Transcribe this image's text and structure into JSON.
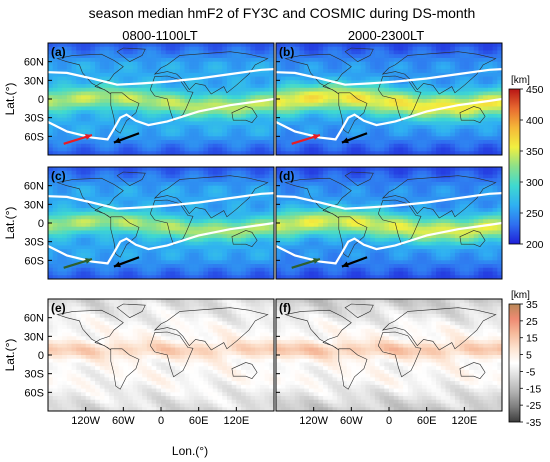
{
  "figure": {
    "title": "season median hmF2 of FY3C and COSMIC during DS-month",
    "column_titles": [
      "0800-1100LT",
      "2000-2300LT"
    ],
    "ylabel": "Lat.(°)",
    "xlabel": "Lon.(°)"
  },
  "colors": {
    "hmf2_colormap": [
      "#1f1fd8",
      "#2f6ff0",
      "#2fb0f2",
      "#3fd9d0",
      "#8ce08a",
      "#f2f040",
      "#f6b838",
      "#e86a30",
      "#b81515"
    ],
    "diff_colormap": [
      "#3c3c3c",
      "#7c7c7c",
      "#b0b0b0",
      "#d8d8d8",
      "#ffffff",
      "#fde3d0",
      "#f6bb9c",
      "#ee8a72",
      "#b98858"
    ],
    "boundary_line": "#ffffff",
    "arrow_red": "#e81c24",
    "arrow_black": "#000000",
    "arrow_green": "#2e5f2e",
    "coast": "#2b2b2b"
  },
  "chart_data": [
    {
      "type": "heatmap",
      "panel": "(a)",
      "row": 1,
      "column": "0800-1100LT",
      "xlabel": "",
      "ylabel": "Lat.(°)",
      "xlim": [
        -180,
        180
      ],
      "ylim": [
        -90,
        90
      ],
      "yticks": [
        "60N",
        "30N",
        "0",
        "30S",
        "60S"
      ],
      "value_range": [
        200,
        450
      ],
      "field": {
        "base": 260,
        "equatorial_peak": 340,
        "peak_lat_width": 18,
        "high_lat_min": 220
      },
      "boundary_lines": [
        {
          "lon": [
            -180,
            -150,
            -110,
            -70,
            -30,
            10,
            60,
            110,
            160,
            180
          ],
          "lat": [
            43,
            42,
            33,
            23,
            25,
            28,
            33,
            40,
            47,
            48
          ]
        },
        {
          "lon": [
            -180,
            -150,
            -110,
            -85,
            -75,
            -65,
            -55,
            -40,
            -20,
            10,
            60,
            110,
            160,
            180
          ],
          "lat": [
            -37,
            -52,
            -62,
            -65,
            -48,
            -30,
            -25,
            -35,
            -42,
            -36,
            -20,
            -10,
            -3,
            0
          ]
        }
      ],
      "arrows": [
        {
          "color": "red",
          "from": [
            -155,
            -72
          ],
          "to": [
            -110,
            -58
          ]
        },
        {
          "color": "black",
          "from": [
            -35,
            -55
          ],
          "to": [
            -75,
            -70
          ]
        }
      ]
    },
    {
      "type": "heatmap",
      "panel": "(b)",
      "row": 1,
      "column": "2000-2300LT",
      "xlabel": "",
      "ylabel": "",
      "xlim": [
        -180,
        180
      ],
      "ylim": [
        -90,
        90
      ],
      "yticks": [
        "60N",
        "30N",
        "0",
        "30S",
        "60S"
      ],
      "value_range": [
        200,
        450
      ],
      "field": {
        "base": 250,
        "equatorial_peak": 360,
        "peak_lat_width": 22,
        "high_lat_min": 215
      },
      "boundary_lines": [
        {
          "lon": [
            -180,
            -150,
            -110,
            -70,
            -30,
            10,
            60,
            110,
            160,
            180
          ],
          "lat": [
            43,
            42,
            33,
            23,
            25,
            28,
            33,
            40,
            47,
            48
          ]
        },
        {
          "lon": [
            -180,
            -150,
            -110,
            -85,
            -75,
            -65,
            -55,
            -40,
            -20,
            10,
            60,
            110,
            160,
            180
          ],
          "lat": [
            -37,
            -52,
            -62,
            -65,
            -48,
            -30,
            -25,
            -35,
            -42,
            -36,
            -20,
            -10,
            -3,
            0
          ]
        }
      ],
      "arrows": [
        {
          "color": "red",
          "from": [
            -155,
            -72
          ],
          "to": [
            -110,
            -58
          ]
        },
        {
          "color": "black",
          "from": [
            -35,
            -55
          ],
          "to": [
            -75,
            -70
          ]
        }
      ]
    },
    {
      "type": "heatmap",
      "panel": "(c)",
      "row": 2,
      "column": "0800-1100LT",
      "xlabel": "",
      "ylabel": "Lat.(°)",
      "xlim": [
        -180,
        180
      ],
      "ylim": [
        -90,
        90
      ],
      "yticks": [
        "60N",
        "30N",
        "0",
        "30S",
        "60S"
      ],
      "value_range": [
        200,
        450
      ],
      "field": {
        "base": 258,
        "equatorial_peak": 335,
        "peak_lat_width": 17,
        "high_lat_min": 220
      },
      "boundary_lines": [
        {
          "lon": [
            -180,
            -150,
            -110,
            -70,
            -30,
            10,
            60,
            110,
            160,
            180
          ],
          "lat": [
            43,
            42,
            33,
            23,
            25,
            28,
            33,
            40,
            47,
            48
          ]
        },
        {
          "lon": [
            -180,
            -150,
            -110,
            -85,
            -75,
            -65,
            -55,
            -40,
            -20,
            10,
            60,
            110,
            160,
            180
          ],
          "lat": [
            -37,
            -52,
            -62,
            -65,
            -48,
            -30,
            -25,
            -35,
            -42,
            -36,
            -20,
            -10,
            -3,
            0
          ]
        }
      ],
      "arrows": [
        {
          "color": "green",
          "from": [
            -155,
            -72
          ],
          "to": [
            -110,
            -58
          ]
        },
        {
          "color": "black",
          "from": [
            -35,
            -55
          ],
          "to": [
            -75,
            -70
          ]
        }
      ]
    },
    {
      "type": "heatmap",
      "panel": "(d)",
      "row": 2,
      "column": "2000-2300LT",
      "xlabel": "",
      "ylabel": "",
      "xlim": [
        -180,
        180
      ],
      "ylim": [
        -90,
        90
      ],
      "yticks": [
        "60N",
        "30N",
        "0",
        "30S",
        "60S"
      ],
      "value_range": [
        200,
        450
      ],
      "field": {
        "base": 248,
        "equatorial_peak": 350,
        "peak_lat_width": 21,
        "high_lat_min": 215
      },
      "boundary_lines": [
        {
          "lon": [
            -180,
            -150,
            -110,
            -70,
            -30,
            10,
            60,
            110,
            160,
            180
          ],
          "lat": [
            43,
            42,
            33,
            23,
            25,
            28,
            33,
            40,
            47,
            48
          ]
        },
        {
          "lon": [
            -180,
            -150,
            -110,
            -85,
            -75,
            -65,
            -55,
            -40,
            -20,
            10,
            60,
            110,
            160,
            180
          ],
          "lat": [
            -37,
            -52,
            -62,
            -65,
            -48,
            -30,
            -25,
            -35,
            -42,
            -36,
            -20,
            -10,
            -3,
            0
          ]
        }
      ],
      "arrows": [
        {
          "color": "green",
          "from": [
            -155,
            -72
          ],
          "to": [
            -110,
            -58
          ]
        },
        {
          "color": "black",
          "from": [
            -35,
            -55
          ],
          "to": [
            -75,
            -70
          ]
        }
      ]
    },
    {
      "type": "heatmap",
      "panel": "(e)",
      "row": 3,
      "column": "0800-1100LT",
      "xlabel": "Lon.(°)",
      "ylabel": "Lat.(°)",
      "xlim": [
        -180,
        180
      ],
      "ylim": [
        -90,
        90
      ],
      "xticks": [
        "120W",
        "60W",
        "0",
        "60E",
        "120E"
      ],
      "yticks": [
        "60N",
        "30N",
        "0",
        "30S",
        "60S"
      ],
      "value_range": [
        -35,
        35
      ],
      "field": {
        "equatorial_diff": 12,
        "high_lat_diff": -8
      }
    },
    {
      "type": "heatmap",
      "panel": "(f)",
      "row": 3,
      "column": "2000-2300LT",
      "xlabel": "Lon.(°)",
      "ylabel": "",
      "xlim": [
        -180,
        180
      ],
      "ylim": [
        -90,
        90
      ],
      "xticks": [
        "120W",
        "60W",
        "0",
        "60E",
        "120E"
      ],
      "yticks": [
        "60N",
        "30N",
        "0",
        "30S",
        "60S"
      ],
      "value_range": [
        -35,
        35
      ],
      "field": {
        "equatorial_diff": 14,
        "high_lat_diff": -12
      }
    }
  ],
  "colorbars": [
    {
      "unit": "[km]",
      "ticks": [
        "450",
        "400",
        "350",
        "300",
        "250",
        "200"
      ],
      "range": [
        200,
        450
      ]
    },
    {
      "unit": "[km]",
      "ticks": [
        "35",
        "25",
        "15",
        "5",
        "-5",
        "-15",
        "-25",
        "-35"
      ],
      "range": [
        -35,
        35
      ]
    }
  ]
}
